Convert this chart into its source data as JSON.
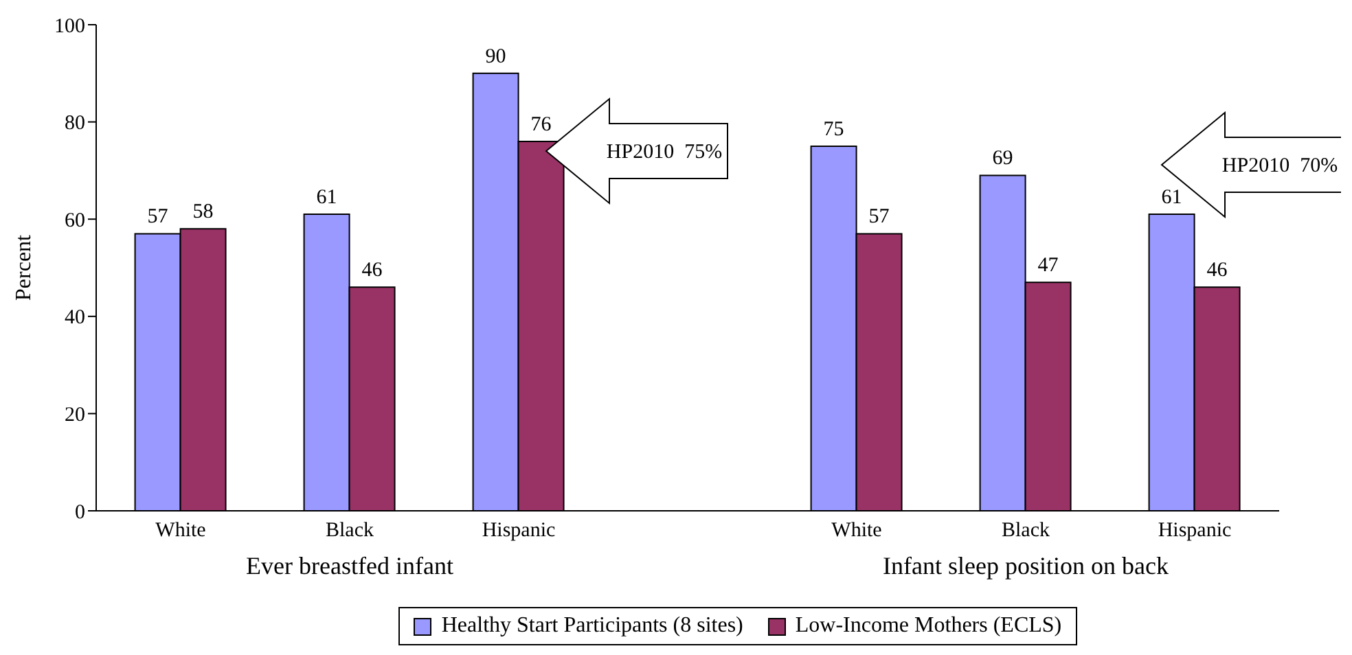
{
  "chart_data": {
    "type": "bar",
    "ylabel": "Percent",
    "categories": [
      "White",
      "Black",
      "Hispanic",
      null,
      "White",
      "Black",
      "Hispanic"
    ],
    "series": [
      {
        "name": "Healthy Start Participants (8 sites)",
        "color": "#9999ff",
        "values": [
          57,
          61,
          90,
          null,
          75,
          69,
          61
        ]
      },
      {
        "name": "Low-Income Mothers (ECLS)",
        "color": "#993366",
        "values": [
          58,
          46,
          76,
          null,
          57,
          47,
          46
        ]
      }
    ],
    "ylim": [
      0,
      100
    ],
    "yticks": [
      0,
      20,
      40,
      60,
      80,
      100
    ],
    "grid": false,
    "data_labels": true,
    "legend": "bottom",
    "annotations": [
      "Ever breastfed infant",
      "Infant sleep position on back",
      "HP2010  75%",
      "HP2010  70%"
    ]
  }
}
